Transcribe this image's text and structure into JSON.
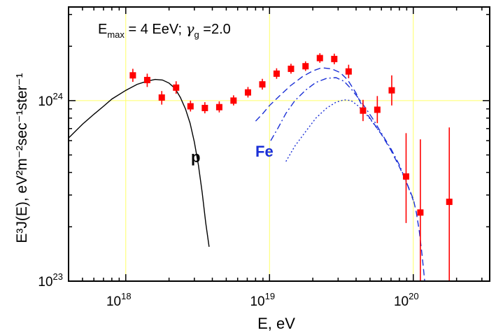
{
  "chart_data": {
    "type": "scatter",
    "xscale": "log",
    "yscale": "log",
    "xlim": [
      4e+17,
      3.4e+20
    ],
    "ylim": [
      1e+23,
      3.3e+24
    ],
    "grid": true,
    "grid_color": "#ffff66",
    "xlabel": "E, eV",
    "ylabel": "E³J(E), eV²m⁻²sec⁻¹ster⁻¹",
    "xticks": [
      {
        "value": 1e+18,
        "base": "10",
        "exp": "18"
      },
      {
        "value": 1e+19,
        "base": "10",
        "exp": "19"
      },
      {
        "value": 1e+20,
        "base": "10",
        "exp": "20"
      }
    ],
    "yticks": [
      {
        "value": 1e+23,
        "base": "10",
        "exp": "23"
      },
      {
        "value": 1e+24,
        "base": "10",
        "exp": "24"
      }
    ],
    "annotations": {
      "params": {
        "E": "E",
        "sub": "max",
        "rest": " = 4 EeV; ",
        "gamma": "γ",
        "gsub": "g",
        "grest": " =2.0"
      },
      "p_label": "p",
      "fe_label": "Fe"
    },
    "colors": {
      "data": "#ff0000",
      "p_curve": "#000000",
      "fe_curve": "#1a2fd6"
    },
    "data_points": [
      {
        "x": 1.12e+18,
        "y": 1.38e+24,
        "lo": 1.27e+24,
        "hi": 1.5e+24
      },
      {
        "x": 1.41e+18,
        "y": 1.3e+24,
        "lo": 1.19e+24,
        "hi": 1.41e+24
      },
      {
        "x": 1.78e+18,
        "y": 1.04e+24,
        "lo": 9.5e+23,
        "hi": 1.13e+24
      },
      {
        "x": 2.24e+18,
        "y": 1.18e+24,
        "lo": 1.09e+24,
        "hi": 1.28e+24
      },
      {
        "x": 2.82e+18,
        "y": 9.3e+23,
        "lo": 8.7e+23,
        "hi": 1e+24
      },
      {
        "x": 3.55e+18,
        "y": 9.1e+23,
        "lo": 8.5e+23,
        "hi": 9.8e+23
      },
      {
        "x": 4.47e+18,
        "y": 9.2e+23,
        "lo": 8.6e+23,
        "hi": 9.9e+23
      },
      {
        "x": 5.62e+18,
        "y": 1e+24,
        "lo": 9.4e+23,
        "hi": 1.07e+24
      },
      {
        "x": 7.08e+18,
        "y": 1.11e+24,
        "lo": 1.04e+24,
        "hi": 1.19e+24
      },
      {
        "x": 8.91e+18,
        "y": 1.23e+24,
        "lo": 1.15e+24,
        "hi": 1.32e+24
      },
      {
        "x": 1.12e+19,
        "y": 1.41e+24,
        "lo": 1.32e+24,
        "hi": 1.51e+24
      },
      {
        "x": 1.41e+19,
        "y": 1.5e+24,
        "lo": 1.41e+24,
        "hi": 1.6e+24
      },
      {
        "x": 1.78e+19,
        "y": 1.55e+24,
        "lo": 1.46e+24,
        "hi": 1.65e+24
      },
      {
        "x": 2.24e+19,
        "y": 1.72e+24,
        "lo": 1.62e+24,
        "hi": 1.83e+24
      },
      {
        "x": 2.82e+19,
        "y": 1.7e+24,
        "lo": 1.59e+24,
        "hi": 1.82e+24
      },
      {
        "x": 3.55e+19,
        "y": 1.45e+24,
        "lo": 1.33e+24,
        "hi": 1.58e+24
      },
      {
        "x": 4.47e+19,
        "y": 8.8e+23,
        "lo": 7.7e+23,
        "hi": 1.01e+24
      },
      {
        "x": 5.62e+19,
        "y": 8.9e+23,
        "lo": 7.5e+23,
        "hi": 1.06e+24
      },
      {
        "x": 7.08e+19,
        "y": 1.14e+24,
        "lo": 9.4e+23,
        "hi": 1.38e+24
      },
      {
        "x": 8.91e+19,
        "y": 3.8e+23,
        "lo": 2.1e+23,
        "hi": 6.6e+23
      },
      {
        "x": 1.12e+20,
        "y": 2.4e+23,
        "lo": 1e+23,
        "hi": 6.1e+23
      },
      {
        "x": 1.78e+20,
        "y": 2.75e+23,
        "lo": 1e+23,
        "hi": 7.1e+23
      }
    ],
    "curves": [
      {
        "style": "solid",
        "color": "#000000",
        "points": [
          [
            4e+17,
            6.2e+23
          ],
          [
            5e+17,
            7.4e+23
          ],
          [
            6e+17,
            8.4e+23
          ],
          [
            7e+17,
            9.3e+23
          ],
          [
            8e+17,
            1.02e+24
          ],
          [
            1e+18,
            1.14e+24
          ],
          [
            1.2e+18,
            1.23e+24
          ],
          [
            1.4e+18,
            1.28e+24
          ],
          [
            1.6e+18,
            1.31e+24
          ],
          [
            1.8e+18,
            1.3e+24
          ],
          [
            2e+18,
            1.25e+24
          ],
          [
            2.2e+18,
            1.17e+24
          ],
          [
            2.4e+18,
            1.04e+24
          ],
          [
            2.6e+18,
            9e+23
          ],
          [
            2.8e+18,
            7.5e+23
          ],
          [
            3e+18,
            5.9e+23
          ],
          [
            3.2e+18,
            4.4e+23
          ],
          [
            3.4e+18,
            3.1e+23
          ],
          [
            3.6e+18,
            2.1e+23
          ],
          [
            3.8e+18,
            1.55e+23
          ]
        ]
      },
      {
        "style": "dash",
        "color": "#1a2fd6",
        "points": [
          [
            8e+18,
            7.7e+23
          ],
          [
            9e+18,
            8.5e+23
          ],
          [
            1e+19,
            9.4e+23
          ],
          [
            1.2e+19,
            1.08e+24
          ],
          [
            1.4e+19,
            1.21e+24
          ],
          [
            1.7e+19,
            1.36e+24
          ],
          [
            2e+19,
            1.46e+24
          ],
          [
            2.3e+19,
            1.52e+24
          ],
          [
            2.7e+19,
            1.5e+24
          ],
          [
            3.1e+19,
            1.43e+24
          ],
          [
            3.5e+19,
            1.3e+24
          ],
          [
            4e+19,
            1.1e+24
          ],
          [
            4.5e+19,
            9e+23
          ],
          [
            5e+19,
            8e+23
          ],
          [
            6e+19,
            6.5e+23
          ],
          [
            7e+19,
            5.3e+23
          ],
          [
            8e+19,
            4.3e+23
          ],
          [
            9e+19,
            3.5e+23
          ],
          [
            1e+20,
            2.85e+23
          ],
          [
            1.05e+20,
            2.4e+23
          ],
          [
            1.1e+20,
            1.9e+23
          ],
          [
            1.15e+20,
            1.4e+23
          ],
          [
            1.2e+20,
            1e+23
          ]
        ]
      },
      {
        "style": "dashdot",
        "color": "#1a2fd6",
        "points": [
          [
            1.02e+19,
            6e+23
          ],
          [
            1.15e+19,
            7.1e+23
          ],
          [
            1.3e+19,
            8.5e+23
          ],
          [
            1.5e+19,
            1e+24
          ],
          [
            1.8e+19,
            1.15e+24
          ],
          [
            2.1e+19,
            1.26e+24
          ],
          [
            2.5e+19,
            1.33e+24
          ],
          [
            2.9e+19,
            1.34e+24
          ],
          [
            3.3e+19,
            1.28e+24
          ],
          [
            3.7e+19,
            1.16e+24
          ],
          [
            4.2e+19,
            1.02e+24
          ],
          [
            4.7e+19,
            9e+23
          ],
          [
            5.3e+19,
            7.8e+23
          ],
          [
            6e+19,
            6.6e+23
          ],
          [
            7e+19,
            5.4e+23
          ],
          [
            8e+19,
            4.4e+23
          ],
          [
            9e+19,
            3.5e+23
          ],
          [
            1e+20,
            2.8e+23
          ]
        ]
      },
      {
        "style": "dot",
        "color": "#1a2fd6",
        "points": [
          [
            1.3e+19,
            4.6e+23
          ],
          [
            1.5e+19,
            5.6e+23
          ],
          [
            1.8e+19,
            6.8e+23
          ],
          [
            2.1e+19,
            8e+23
          ],
          [
            2.5e+19,
            9.1e+23
          ],
          [
            2.9e+19,
            9.8e+23
          ],
          [
            3.3e+19,
            1.01e+24
          ],
          [
            3.7e+19,
            1e+24
          ],
          [
            4.1e+19,
            9.4e+23
          ],
          [
            4.6e+19,
            8.6e+23
          ],
          [
            5.2e+19,
            7.6e+23
          ],
          [
            6e+19,
            6.5e+23
          ]
        ]
      }
    ]
  }
}
